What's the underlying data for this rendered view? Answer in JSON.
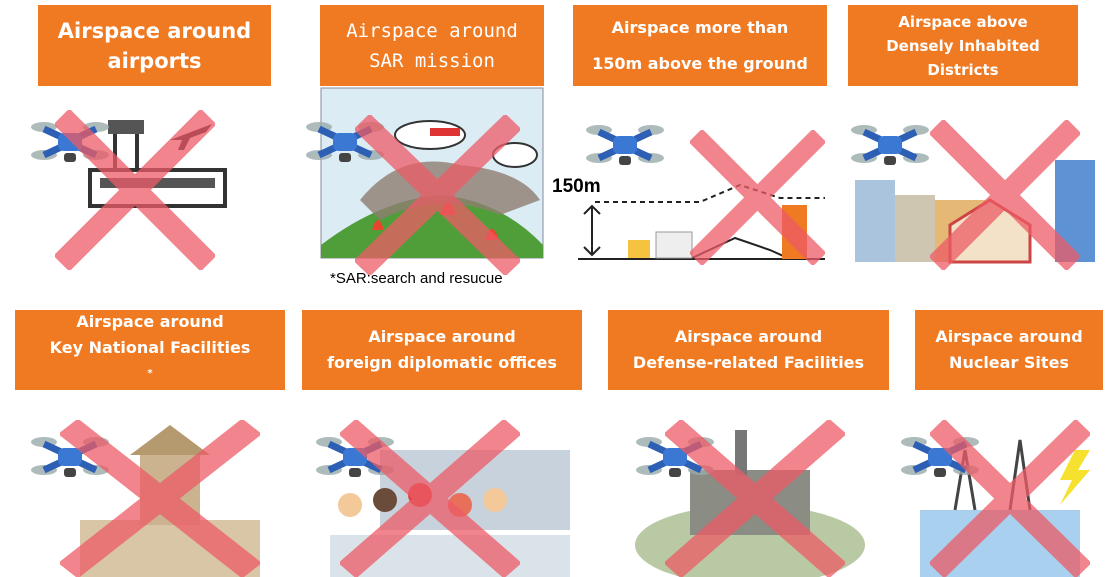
{
  "panels": [
    {
      "lines": [
        "Airspace around",
        "airports"
      ]
    },
    {
      "lines": [
        "Airspace around",
        "SAR mission"
      ]
    },
    {
      "lines": [
        "Airspace more than",
        "150m above the ground"
      ]
    },
    {
      "lines": [
        "Airspace above",
        "Densely Inhabited",
        "Districts"
      ]
    },
    {
      "lines": [
        "Airspace around",
        "Key National Facilities"
      ],
      "note_mark": "*"
    },
    {
      "lines": [
        "Airspace around",
        "foreign diplomatic offices"
      ]
    },
    {
      "lines": [
        "Airspace around",
        "Defense-related Facilities"
      ]
    },
    {
      "lines": [
        "Airspace around",
        "Nuclear Sites"
      ]
    }
  ],
  "height_label": "150m",
  "sar_note": "*SAR:search and resucue"
}
